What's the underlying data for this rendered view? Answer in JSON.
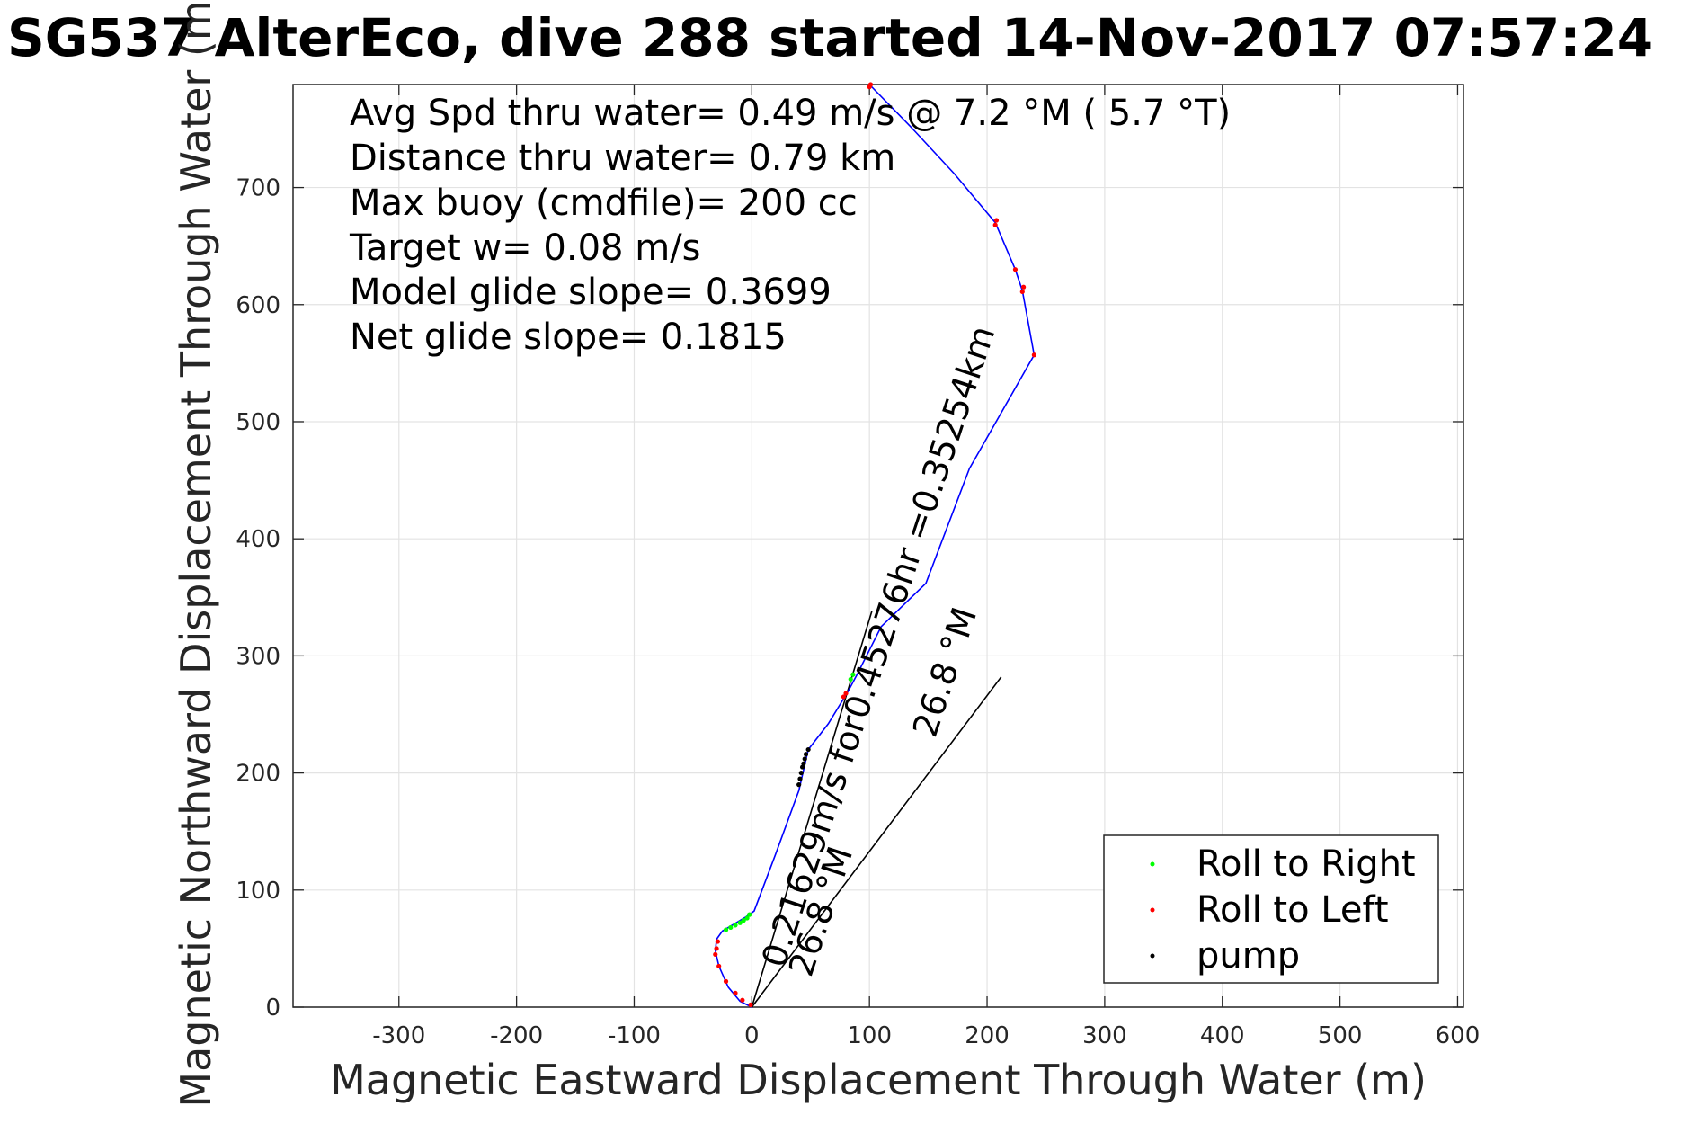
{
  "chart_data": {
    "type": "line",
    "title": "SG537 AlterEco, dive 288 started 14-Nov-2017 07:57:24",
    "xlabel": "Magnetic Eastward Displacement Through Water (m)",
    "ylabel": "Magnetic Northward Displacement Through Water (m)",
    "xlim": [
      -390,
      605
    ],
    "ylim": [
      0,
      788
    ],
    "xticks": [
      -300,
      -200,
      -100,
      0,
      100,
      200,
      300,
      400,
      500,
      600
    ],
    "yticks": [
      0,
      100,
      200,
      300,
      400,
      500,
      600,
      700
    ],
    "grid": true,
    "colors": {
      "track": "#0000ff",
      "roll_right": "#00ff00",
      "roll_left": "#ff0000",
      "pump": "#000000",
      "current_line": "#000000"
    },
    "annotations": [
      "Avg Spd thru water=  0.49 m/s @   7.2 °M (  5.7 °T)",
      "Distance thru water=  0.79 km",
      "Max buoy (cmdfile)= 200 cc",
      "Target w= 0.08 m/s",
      "Model glide slope= 0.3699",
      "Net glide slope= 0.1815"
    ],
    "rotated_labels": [
      "0.21629m/s for0.45276hr =0.35254km",
      "26.8 °M",
      "26.8 °M"
    ],
    "track": {
      "name": "track",
      "x": [
        0,
        -10,
        -20,
        -28,
        -31,
        -30,
        -25,
        -15,
        -5,
        2,
        20,
        40,
        48,
        65,
        82,
        90,
        110,
        148,
        185,
        240,
        230,
        224,
        207,
        172,
        135,
        100
      ],
      "y": [
        0,
        5,
        17,
        35,
        48,
        58,
        65,
        71,
        77,
        82,
        130,
        185,
        220,
        242,
        270,
        285,
        325,
        362,
        460,
        557,
        612,
        630,
        670,
        712,
        752,
        788
      ]
    },
    "roll_right_points": {
      "x": [
        -22,
        -18,
        -14,
        -10,
        -7,
        -4,
        -2,
        84,
        86
      ],
      "y": [
        66,
        68,
        70,
        72,
        74,
        76,
        79,
        280,
        284
      ]
    },
    "roll_left_points": {
      "x": [
        -1,
        -8,
        -14,
        -22,
        -28,
        -31,
        -30,
        -29,
        78,
        80,
        100,
        101,
        207,
        208,
        224,
        230,
        231,
        240
      ],
      "y": [
        2,
        6,
        12,
        22,
        35,
        45,
        50,
        56,
        265,
        268,
        786,
        788,
        668,
        672,
        630,
        611,
        615,
        557
      ]
    },
    "pump_points": {
      "x": [
        40,
        41,
        42,
        43,
        44,
        45,
        46,
        48
      ],
      "y": [
        190,
        195,
        200,
        205,
        208,
        212,
        216,
        220
      ]
    },
    "current_lines": [
      {
        "x": [
          0,
          102
        ],
        "y": [
          0,
          338
        ]
      },
      {
        "x": [
          0,
          212
        ],
        "y": [
          0,
          282
        ]
      }
    ],
    "legend": {
      "placement": "bottom-right",
      "entries": [
        "Roll to Right",
        "Roll to Left",
        "pump"
      ]
    }
  }
}
